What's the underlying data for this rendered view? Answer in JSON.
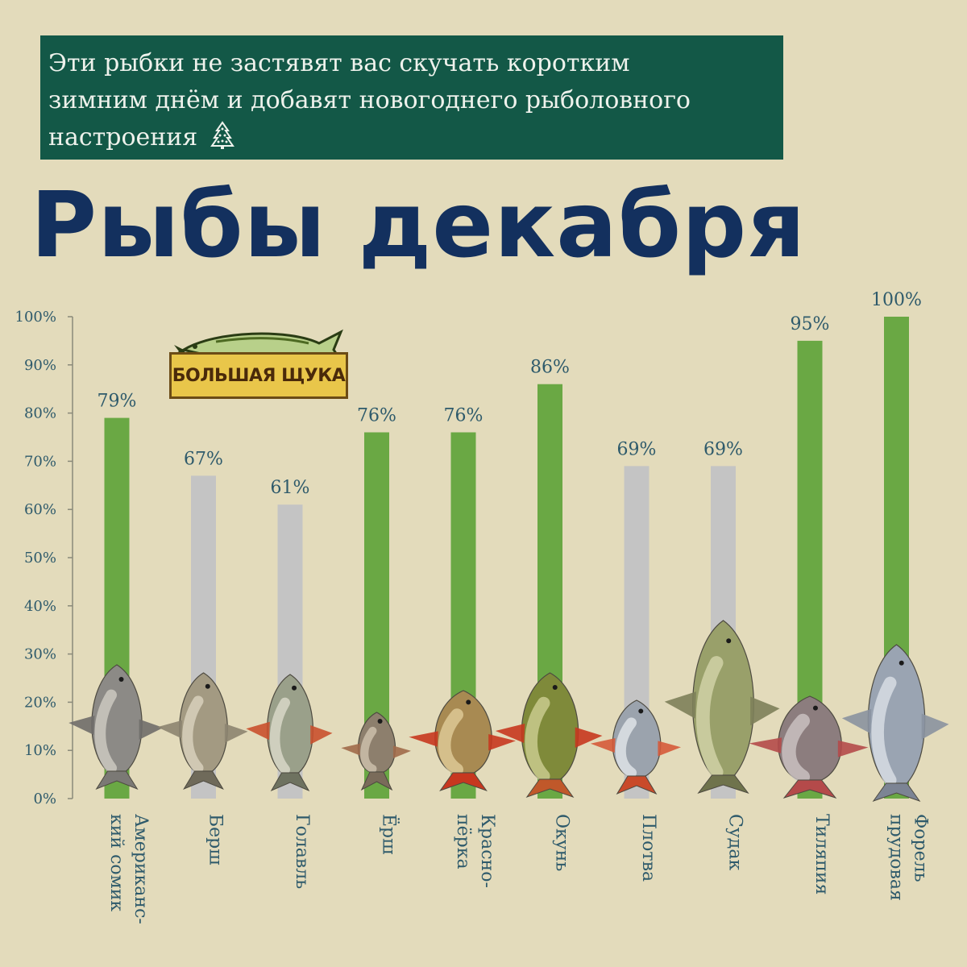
{
  "banner": {
    "line1": "Эти рыбки не застявят вас скучать коротким",
    "line2": "зимним днём и добавят новогоднего рыболовного",
    "line3": "настроения"
  },
  "title": "Рыбы декабря",
  "logo": {
    "text": "БОЛЬШАЯ ЩУКА"
  },
  "colors": {
    "background": "#e3dbbb",
    "banner": "#135847",
    "title": "#13305e",
    "green_bar": "#6aa844",
    "gray_bar": "#c4c4c4",
    "text": "#2e5a6b"
  },
  "chart_data": {
    "type": "bar",
    "title": "",
    "xlabel": "",
    "ylabel": "",
    "ylim": [
      0,
      100
    ],
    "y_ticks": [
      "0%",
      "10%",
      "20%",
      "30%",
      "40%",
      "50%",
      "60%",
      "70%",
      "80%",
      "90%",
      "100%"
    ],
    "categories": [
      [
        "Американс-",
        "кий сомик"
      ],
      [
        "Берш"
      ],
      [
        "Голавль"
      ],
      [
        "Ёрш"
      ],
      [
        "Красно-",
        "пёрка"
      ],
      [
        "Окунь"
      ],
      [
        "Плотва"
      ],
      [
        "Судак"
      ],
      [
        "Тиляпия"
      ],
      [
        "Форель",
        "прудовая"
      ]
    ],
    "values": [
      79,
      67,
      61,
      76,
      76,
      86,
      69,
      69,
      95,
      100
    ],
    "value_labels": [
      "79%",
      "67%",
      "61%",
      "76%",
      "76%",
      "86%",
      "69%",
      "69%",
      "95%",
      "100%"
    ],
    "bar_colors": [
      "green",
      "gray",
      "gray",
      "green",
      "green",
      "green",
      "gray",
      "gray",
      "green",
      "green"
    ],
    "fish_icons": [
      "catfish-icon",
      "bersh-icon",
      "chub-icon",
      "ruffe-icon",
      "rudd-icon",
      "perch-icon",
      "roach-icon",
      "zander-icon",
      "tilapia-icon",
      "trout-icon"
    ],
    "grid": false,
    "legend": "none"
  }
}
